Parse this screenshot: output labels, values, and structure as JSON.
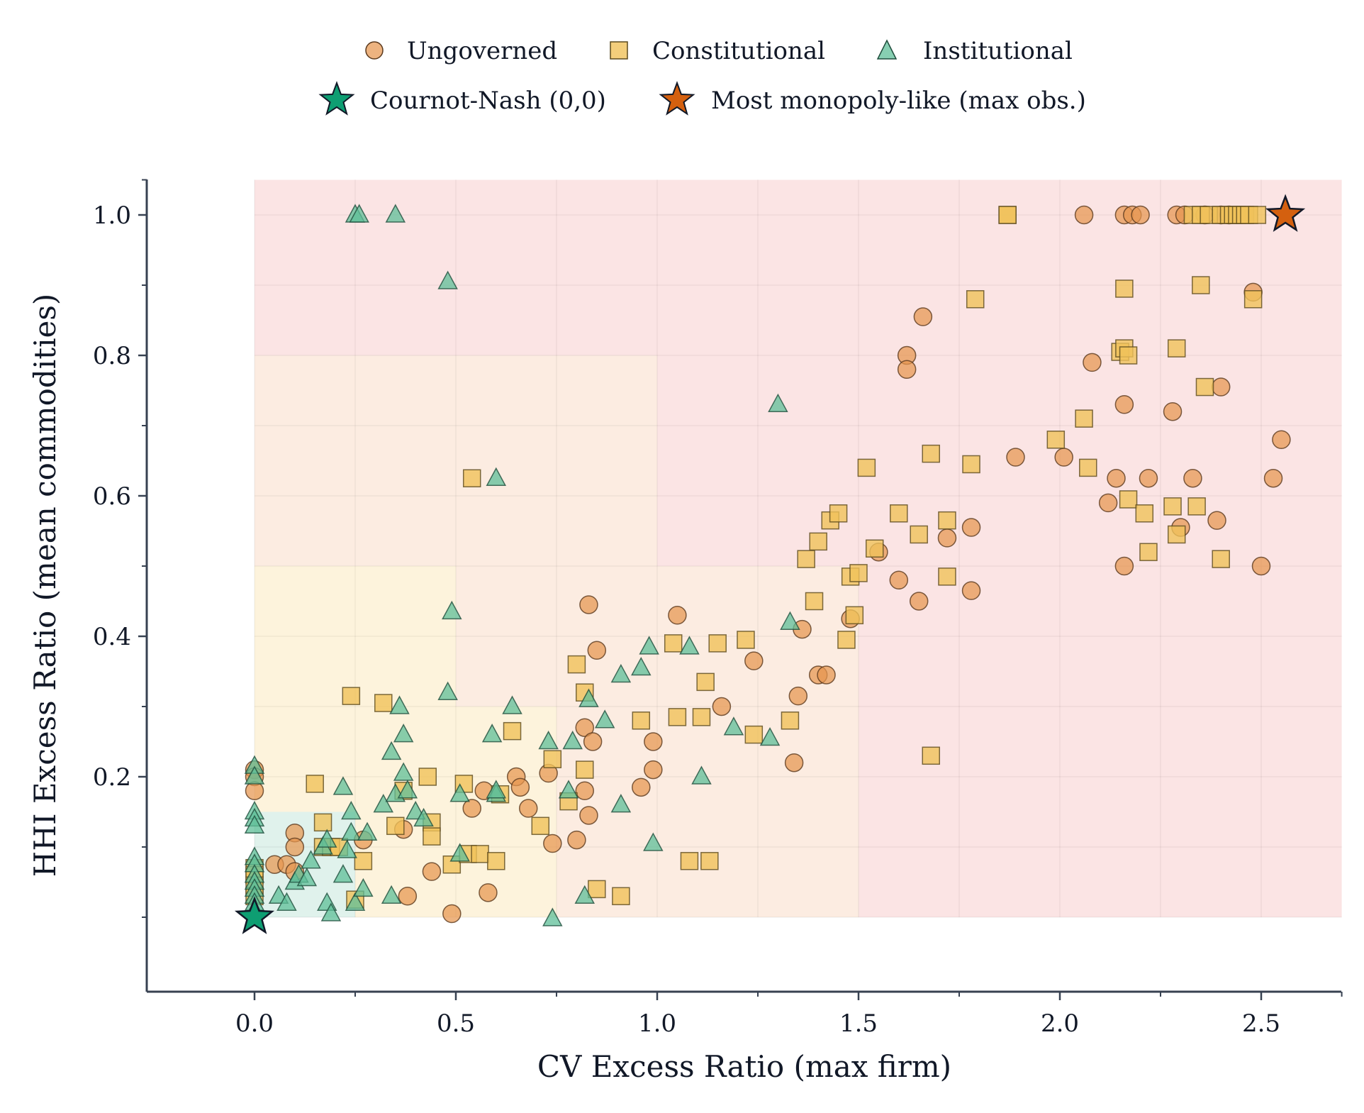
{
  "chart_data": {
    "type": "scatter",
    "title": "",
    "xlabel": "CV Excess Ratio (max firm)",
    "ylabel": "HHI Excess Ratio (mean commodities)",
    "xlim": [
      -0.27,
      2.7
    ],
    "ylim": [
      -0.105,
      1.05
    ],
    "x_ticks": [
      "0.0",
      "0.5",
      "1.0",
      "1.5",
      "2.0",
      "2.5"
    ],
    "x_tick_values": [
      0,
      0.5,
      1.0,
      1.5,
      2.0,
      2.5
    ],
    "y_ticks": [
      "0.2",
      "0.4",
      "0.6",
      "0.8",
      "1.0"
    ],
    "y_tick_values": [
      0.2,
      0.4,
      0.6,
      0.8,
      1.0
    ],
    "grid": true,
    "legend_position": "top-center",
    "colors": {
      "ungoverned": "#e6954f",
      "constitutional": "#f0c25a",
      "institutional": "#5fbf98",
      "nash_star": "#0e9e72",
      "monopoly_star": "#d4600f",
      "axis": "#374151",
      "zone_green": "#e0f2ec",
      "zone_yellow": "#fdf3dc",
      "zone_orange": "#fcece1",
      "zone_red": "#fbe4e4"
    },
    "regions": [
      {
        "name": "red",
        "x": [
          0,
          2.7
        ],
        "y": [
          0,
          1.05
        ]
      },
      {
        "name": "orange",
        "x": [
          0,
          1.5
        ],
        "y": [
          0,
          0.5
        ]
      },
      {
        "name": "orange",
        "x": [
          0,
          1.0
        ],
        "y": [
          0.5,
          0.8
        ]
      },
      {
        "name": "yellow",
        "x": [
          0,
          0.75
        ],
        "y": [
          0,
          0.3
        ]
      },
      {
        "name": "yellow",
        "x": [
          0,
          0.5
        ],
        "y": [
          0.3,
          0.5
        ]
      },
      {
        "name": "green",
        "x": [
          0,
          0.25
        ],
        "y": [
          0,
          0.15
        ]
      }
    ],
    "series": [
      {
        "name": "Ungoverned",
        "marker": "circle",
        "points": [
          [
            0,
            0.21
          ],
          [
            0,
            0.2
          ],
          [
            0,
            0.18
          ],
          [
            0.05,
            0.075
          ],
          [
            0.08,
            0.075
          ],
          [
            0.1,
            0.12
          ],
          [
            0.1,
            0.1
          ],
          [
            0.1,
            0.065
          ],
          [
            0.27,
            0.11
          ],
          [
            0.37,
            0.125
          ],
          [
            0.38,
            0.03
          ],
          [
            0.44,
            0.065
          ],
          [
            0.49,
            0.005
          ],
          [
            0.54,
            0.155
          ],
          [
            0.57,
            0.18
          ],
          [
            0.58,
            0.035
          ],
          [
            0.65,
            0.2
          ],
          [
            0.66,
            0.185
          ],
          [
            0.68,
            0.155
          ],
          [
            0.73,
            0.205
          ],
          [
            0.74,
            0.105
          ],
          [
            0.8,
            0.11
          ],
          [
            0.82,
            0.18
          ],
          [
            0.82,
            0.27
          ],
          [
            0.83,
            0.445
          ],
          [
            0.83,
            0.145
          ],
          [
            0.84,
            0.25
          ],
          [
            0.85,
            0.38
          ],
          [
            0.96,
            0.185
          ],
          [
            0.99,
            0.21
          ],
          [
            0.99,
            0.25
          ],
          [
            1.05,
            0.43
          ],
          [
            1.16,
            0.3
          ],
          [
            1.24,
            0.365
          ],
          [
            1.34,
            0.22
          ],
          [
            1.35,
            0.315
          ],
          [
            1.36,
            0.41
          ],
          [
            1.4,
            0.345
          ],
          [
            1.42,
            0.345
          ],
          [
            1.48,
            0.425
          ],
          [
            1.55,
            0.52
          ],
          [
            1.6,
            0.48
          ],
          [
            1.62,
            0.8
          ],
          [
            1.62,
            0.78
          ],
          [
            1.65,
            0.45
          ],
          [
            1.66,
            0.855
          ],
          [
            1.72,
            0.54
          ],
          [
            1.78,
            0.555
          ],
          [
            1.78,
            0.465
          ],
          [
            1.89,
            0.655
          ],
          [
            2.01,
            0.655
          ],
          [
            2.06,
            1.0
          ],
          [
            2.08,
            0.79
          ],
          [
            2.12,
            0.59
          ],
          [
            2.14,
            0.625
          ],
          [
            2.16,
            0.5
          ],
          [
            2.16,
            0.73
          ],
          [
            2.16,
            1.0
          ],
          [
            2.18,
            1.0
          ],
          [
            2.2,
            1.0
          ],
          [
            2.22,
            0.625
          ],
          [
            2.28,
            0.72
          ],
          [
            2.29,
            1.0
          ],
          [
            2.3,
            0.555
          ],
          [
            2.31,
            1.0
          ],
          [
            2.33,
            0.625
          ],
          [
            2.36,
            1.0
          ],
          [
            2.39,
            0.565
          ],
          [
            2.4,
            0.755
          ],
          [
            2.4,
            1.0
          ],
          [
            2.42,
            1.0
          ],
          [
            2.48,
            0.89
          ],
          [
            2.5,
            0.5
          ],
          [
            2.53,
            0.625
          ],
          [
            2.55,
            0.68
          ]
        ]
      },
      {
        "name": "Constitutional",
        "marker": "square",
        "points": [
          [
            0,
            0.07
          ],
          [
            0,
            0.06
          ],
          [
            0,
            0.045
          ],
          [
            0,
            0.03
          ],
          [
            0.15,
            0.19
          ],
          [
            0.17,
            0.135
          ],
          [
            0.17,
            0.1
          ],
          [
            0.19,
            0.1
          ],
          [
            0.21,
            0.1
          ],
          [
            0.24,
            0.315
          ],
          [
            0.25,
            0.025
          ],
          [
            0.27,
            0.08
          ],
          [
            0.32,
            0.305
          ],
          [
            0.35,
            0.13
          ],
          [
            0.37,
            0.18
          ],
          [
            0.43,
            0.2
          ],
          [
            0.44,
            0.135
          ],
          [
            0.44,
            0.115
          ],
          [
            0.49,
            0.075
          ],
          [
            0.52,
            0.19
          ],
          [
            0.53,
            0.09
          ],
          [
            0.54,
            0.625
          ],
          [
            0.56,
            0.09
          ],
          [
            0.6,
            0.08
          ],
          [
            0.61,
            0.175
          ],
          [
            0.64,
            0.265
          ],
          [
            0.71,
            0.13
          ],
          [
            0.74,
            0.225
          ],
          [
            0.78,
            0.165
          ],
          [
            0.8,
            0.36
          ],
          [
            0.82,
            0.32
          ],
          [
            0.82,
            0.21
          ],
          [
            0.85,
            0.04
          ],
          [
            0.91,
            0.03
          ],
          [
            0.96,
            0.28
          ],
          [
            1.04,
            0.39
          ],
          [
            1.05,
            0.285
          ],
          [
            1.08,
            0.08
          ],
          [
            1.11,
            0.285
          ],
          [
            1.12,
            0.335
          ],
          [
            1.13,
            0.08
          ],
          [
            1.15,
            0.39
          ],
          [
            1.22,
            0.395
          ],
          [
            1.24,
            0.26
          ],
          [
            1.33,
            0.28
          ],
          [
            1.37,
            0.51
          ],
          [
            1.39,
            0.45
          ],
          [
            1.4,
            0.535
          ],
          [
            1.43,
            0.565
          ],
          [
            1.45,
            0.575
          ],
          [
            1.47,
            0.395
          ],
          [
            1.48,
            0.485
          ],
          [
            1.49,
            0.43
          ],
          [
            1.5,
            0.49
          ],
          [
            1.52,
            0.64
          ],
          [
            1.54,
            0.525
          ],
          [
            1.6,
            0.575
          ],
          [
            1.65,
            0.545
          ],
          [
            1.68,
            0.23
          ],
          [
            1.68,
            0.66
          ],
          [
            1.72,
            0.565
          ],
          [
            1.72,
            0.485
          ],
          [
            1.78,
            0.645
          ],
          [
            1.79,
            0.88
          ],
          [
            1.87,
            1.0
          ],
          [
            1.87,
            1.0
          ],
          [
            1.99,
            0.68
          ],
          [
            2.06,
            0.71
          ],
          [
            2.07,
            0.64
          ],
          [
            2.15,
            0.805
          ],
          [
            2.16,
            0.81
          ],
          [
            2.16,
            0.895
          ],
          [
            2.17,
            0.8
          ],
          [
            2.17,
            0.595
          ],
          [
            2.21,
            0.575
          ],
          [
            2.22,
            0.52
          ],
          [
            2.28,
            0.585
          ],
          [
            2.29,
            0.81
          ],
          [
            2.29,
            0.545
          ],
          [
            2.33,
            1.0
          ],
          [
            2.34,
            0.585
          ],
          [
            2.35,
            0.9
          ],
          [
            2.35,
            1.0
          ],
          [
            2.36,
            0.755
          ],
          [
            2.37,
            1.0
          ],
          [
            2.4,
            0.51
          ],
          [
            2.4,
            1.0
          ],
          [
            2.42,
            1.0
          ],
          [
            2.43,
            1.0
          ],
          [
            2.44,
            1.0
          ],
          [
            2.45,
            1.0
          ],
          [
            2.46,
            1.0
          ],
          [
            2.47,
            1.0
          ],
          [
            2.48,
            0.88
          ],
          [
            2.49,
            1.0
          ]
        ]
      },
      {
        "name": "Institutional",
        "marker": "triangle",
        "points": [
          [
            0,
            0.215
          ],
          [
            0,
            0.2
          ],
          [
            0,
            0.15
          ],
          [
            0,
            0.14
          ],
          [
            0,
            0.13
          ],
          [
            0,
            0.085
          ],
          [
            0,
            0.075
          ],
          [
            0,
            0.06
          ],
          [
            0,
            0.05
          ],
          [
            0,
            0.04
          ],
          [
            0,
            0.03
          ],
          [
            0,
            0.02
          ],
          [
            0,
            0.01
          ],
          [
            0.06,
            0.03
          ],
          [
            0.08,
            0.02
          ],
          [
            0.1,
            0.05
          ],
          [
            0.11,
            0.06
          ],
          [
            0.13,
            0.055
          ],
          [
            0.14,
            0.08
          ],
          [
            0.17,
            0.1
          ],
          [
            0.18,
            0.11
          ],
          [
            0.18,
            0.02
          ],
          [
            0.19,
            0.005
          ],
          [
            0.22,
            0.06
          ],
          [
            0.22,
            0.185
          ],
          [
            0.23,
            0.095
          ],
          [
            0.24,
            0.15
          ],
          [
            0.24,
            0.12
          ],
          [
            0.25,
            0.02
          ],
          [
            0.25,
            1.0
          ],
          [
            0.26,
            1.0
          ],
          [
            0.27,
            0.04
          ],
          [
            0.28,
            0.12
          ],
          [
            0.32,
            0.16
          ],
          [
            0.34,
            0.235
          ],
          [
            0.34,
            0.03
          ],
          [
            0.35,
            0.175
          ],
          [
            0.35,
            1.0
          ],
          [
            0.36,
            0.3
          ],
          [
            0.37,
            0.205
          ],
          [
            0.37,
            0.26
          ],
          [
            0.38,
            0.18
          ],
          [
            0.4,
            0.15
          ],
          [
            0.42,
            0.14
          ],
          [
            0.48,
            0.32
          ],
          [
            0.48,
            0.905
          ],
          [
            0.49,
            0.435
          ],
          [
            0.51,
            0.175
          ],
          [
            0.51,
            0.09
          ],
          [
            0.59,
            0.26
          ],
          [
            0.6,
            0.625
          ],
          [
            0.6,
            0.175
          ],
          [
            0.6,
            0.18
          ],
          [
            0.64,
            0.3
          ],
          [
            0.73,
            0.25
          ],
          [
            0.74,
            -0.002
          ],
          [
            0.78,
            0.18
          ],
          [
            0.79,
            0.25
          ],
          [
            0.82,
            0.03
          ],
          [
            0.83,
            0.31
          ],
          [
            0.87,
            0.28
          ],
          [
            0.91,
            0.345
          ],
          [
            0.91,
            0.16
          ],
          [
            0.96,
            0.355
          ],
          [
            0.98,
            0.385
          ],
          [
            0.99,
            0.105
          ],
          [
            1.08,
            0.385
          ],
          [
            1.11,
            0.2
          ],
          [
            1.19,
            0.27
          ],
          [
            1.28,
            0.255
          ],
          [
            1.3,
            0.73
          ],
          [
            1.33,
            0.42
          ]
        ]
      }
    ],
    "special_points": [
      {
        "name": "Cournot-Nash (0,0)",
        "marker": "star",
        "x": 0,
        "y": 0
      },
      {
        "name": "Most monopoly-like (max obs.)",
        "marker": "star",
        "x": 2.56,
        "y": 1.0
      }
    ],
    "legend": {
      "row1": [
        "Ungoverned",
        "Constitutional",
        "Institutional"
      ],
      "row2": [
        "Cournot-Nash (0,0)",
        "Most monopoly-like (max obs.)"
      ]
    }
  }
}
